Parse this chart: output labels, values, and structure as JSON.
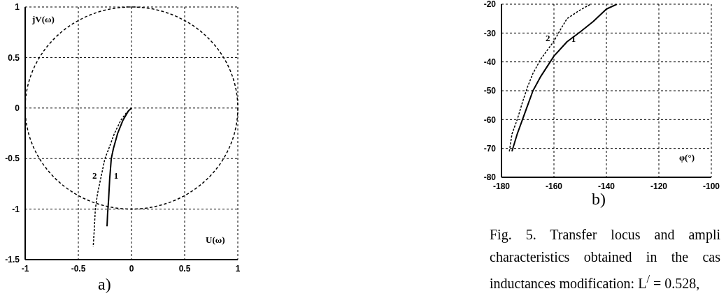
{
  "chart_data": [
    {
      "type": "line",
      "title": "a)",
      "xlabel": "U(ω)",
      "ylabel": "jV(ω)",
      "xlim": [
        -1,
        1
      ],
      "ylim": [
        -1.5,
        1
      ],
      "xticks": [
        -1,
        -0.5,
        0,
        0.5,
        1
      ],
      "yticks": [
        -1.5,
        -1,
        -0.5,
        0,
        0.5,
        1
      ],
      "grid": true,
      "legend": false,
      "marker": "none",
      "series": [
        {
          "name": "1",
          "color": "#000000",
          "line_style": "solid",
          "x": [
            0,
            -0.03,
            -0.08,
            -0.13,
            -0.17,
            -0.19,
            -0.205,
            -0.215,
            -0.225,
            -0.23
          ],
          "values": [
            0,
            -0.03,
            -0.12,
            -0.25,
            -0.4,
            -0.5,
            -0.7,
            -0.9,
            -1.05,
            -1.17
          ]
        },
        {
          "name": "2",
          "color": "#000000",
          "line_style": "dashed",
          "x": [
            0,
            -0.05,
            -0.1,
            -0.16,
            -0.22,
            -0.25,
            -0.29,
            -0.32,
            -0.34,
            -0.35,
            -0.36
          ],
          "values": [
            0,
            -0.05,
            -0.12,
            -0.25,
            -0.42,
            -0.5,
            -0.7,
            -0.85,
            -1,
            -1.2,
            -1.37
          ]
        }
      ]
    },
    {
      "type": "line",
      "title": "b)",
      "xlabel": "φ(°)",
      "xlim": [
        -180,
        -100
      ],
      "ylim": [
        -80,
        -20
      ],
      "xticks": [
        -180,
        -160,
        -140,
        -120,
        -100
      ],
      "yticks": [
        -80,
        -70,
        -60,
        -50,
        -40,
        -30,
        -20
      ],
      "grid": true,
      "legend": false,
      "marker": "none",
      "annotations": [
        "Fig. 5. Transfer locus and ampli characteristics obtained in the cas inductances modification: L$^{/}$ = 0.528,"
      ],
      "series": [
        {
          "name": "1",
          "color": "#000000",
          "line_style": "solid",
          "x": [
            -176,
            -174,
            -172,
            -170,
            -168,
            -165,
            -160,
            -155,
            -150,
            -145,
            -140,
            -136
          ],
          "values": [
            -71,
            -65,
            -60,
            -55,
            -50,
            -45,
            -38,
            -33,
            -29.6,
            -26,
            -21.7,
            -20
          ]
        },
        {
          "name": "2",
          "color": "#000000",
          "line_style": "dashed",
          "x": [
            -177,
            -176,
            -174,
            -172,
            -170,
            -168,
            -165,
            -160,
            -157,
            -155,
            -150,
            -146
          ],
          "values": [
            -71,
            -65,
            -60,
            -54,
            -48.5,
            -44,
            -39,
            -32.8,
            -28,
            -25,
            -22,
            -20
          ]
        }
      ]
    }
  ]
}
